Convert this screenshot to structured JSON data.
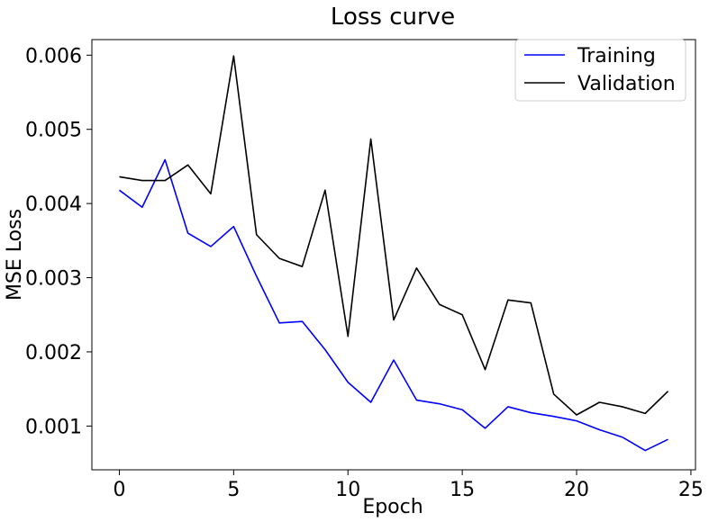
{
  "chart_data": {
    "type": "line",
    "title": "Loss curve",
    "xlabel": "Epoch",
    "ylabel": "MSE Loss",
    "xlim": [
      -1.2,
      25.2
    ],
    "ylim": [
      0.00041,
      0.00621
    ],
    "xticks": [
      0,
      5,
      10,
      15,
      20,
      25
    ],
    "xtick_labels": [
      "0",
      "5",
      "10",
      "15",
      "20",
      "25"
    ],
    "yticks": [
      0.001,
      0.002,
      0.003,
      0.004,
      0.005,
      0.006
    ],
    "ytick_labels": [
      "0.001",
      "0.002",
      "0.003",
      "0.004",
      "0.005",
      "0.006"
    ],
    "grid": false,
    "legend_position": "top-right",
    "x": [
      0,
      1,
      2,
      3,
      4,
      5,
      6,
      7,
      8,
      9,
      10,
      11,
      12,
      13,
      14,
      15,
      16,
      17,
      18,
      19,
      20,
      21,
      22,
      23,
      24
    ],
    "series": [
      {
        "name": "Training",
        "color": "#0000ff",
        "values": [
          0.00418,
          0.00395,
          0.00459,
          0.0036,
          0.00342,
          0.00369,
          0.00302,
          0.00239,
          0.00241,
          0.00203,
          0.00159,
          0.00132,
          0.00189,
          0.00135,
          0.0013,
          0.00122,
          0.00097,
          0.00126,
          0.00118,
          0.00113,
          0.00107,
          0.00095,
          0.00085,
          0.00067,
          0.00082
        ]
      },
      {
        "name": "Validation",
        "color": "#000000",
        "values": [
          0.00436,
          0.00431,
          0.00431,
          0.00452,
          0.00413,
          0.00599,
          0.00358,
          0.00326,
          0.00315,
          0.00418,
          0.00221,
          0.00487,
          0.00243,
          0.00313,
          0.00264,
          0.0025,
          0.00176,
          0.0027,
          0.00266,
          0.00143,
          0.00115,
          0.00132,
          0.00126,
          0.00117,
          0.00147
        ]
      }
    ]
  }
}
